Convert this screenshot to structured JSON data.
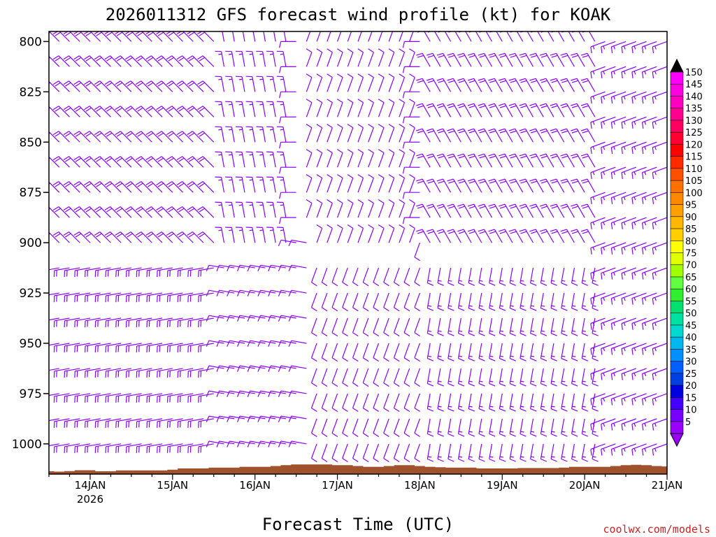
{
  "chart_data": {
    "type": "wind-barb-profile",
    "title": "2026011312 GFS forecast wind profile (kt) for KOAK",
    "xlabel": "Forecast Time (UTC)",
    "ylabel": "",
    "credit": "coolwx.com/models",
    "y_axis": {
      "unit": "hPa",
      "range": [
        1015,
        795
      ],
      "ticks": [
        800,
        825,
        850,
        875,
        900,
        925,
        950,
        975,
        1000
      ],
      "barb_levels": [
        800,
        812.5,
        825,
        837.5,
        850,
        862.5,
        875,
        887.5,
        900,
        912.5,
        925,
        937.5,
        950,
        962.5,
        975,
        987.5,
        1000
      ]
    },
    "x_axis": {
      "unit": "hours after 2026-01-13 12Z",
      "range": [
        0,
        180
      ],
      "ticks": [
        {
          "hour": 12,
          "label": "14JAN",
          "sublabel": "2026"
        },
        {
          "hour": 36,
          "label": "15JAN",
          "sublabel": ""
        },
        {
          "hour": 60,
          "label": "16JAN",
          "sublabel": ""
        },
        {
          "hour": 84,
          "label": "17JAN",
          "sublabel": ""
        },
        {
          "hour": 108,
          "label": "18JAN",
          "sublabel": ""
        },
        {
          "hour": 132,
          "label": "19JAN",
          "sublabel": ""
        },
        {
          "hour": 156,
          "label": "20JAN",
          "sublabel": ""
        },
        {
          "hour": 180,
          "label": "21JAN",
          "sublabel": ""
        }
      ],
      "barb_step_hours": 3
    },
    "colorbar": {
      "unit": "kt",
      "ticks": [
        150,
        145,
        140,
        135,
        130,
        125,
        120,
        115,
        110,
        105,
        100,
        95,
        90,
        85,
        80,
        75,
        70,
        65,
        60,
        55,
        50,
        45,
        40,
        35,
        30,
        25,
        20,
        15,
        10,
        5
      ],
      "colors": [
        "#ff00ff",
        "#ff00e0",
        "#ff00c0",
        "#ff0090",
        "#ff0060",
        "#ff0030",
        "#ff0000",
        "#ff2a00",
        "#ff5000",
        "#ff7000",
        "#ff8800",
        "#ffa000",
        "#ffb800",
        "#ffd000",
        "#ffff00",
        "#e0ff00",
        "#a0ff00",
        "#60ff40",
        "#30ee30",
        "#00e070",
        "#00e0a0",
        "#00d8d0",
        "#00b8f0",
        "#0090ff",
        "#0060ff",
        "#0040e0",
        "#0000e0",
        "#4400ff",
        "#7700ff",
        "#9900ff"
      ],
      "min_triangle_color": "#9900ff",
      "max_triangle_color": "#000000"
    },
    "terrain": {
      "color": "#a0522d",
      "surface_pressure_hpa": [
        1013.6,
        1013.8,
        1013.5,
        1013.1,
        1013.1,
        1013.6,
        1013.6,
        1013.2,
        1013.2,
        1013.2,
        1013.2,
        1013.2,
        1012.8,
        1012.2,
        1012.2,
        1012.2,
        1011.8,
        1011.8,
        1011.8,
        1011.4,
        1011.4,
        1011.4,
        1011.0,
        1010.6,
        1010.2,
        1010.2,
        1010.2,
        1010.2,
        1010.6,
        1010.6,
        1011.0,
        1011.4,
        1011.4,
        1011.0,
        1010.6,
        1010.6,
        1011.0,
        1011.4,
        1011.6,
        1011.8,
        1011.8,
        1011.8,
        1012.2,
        1012.2,
        1012.2,
        1012.2,
        1012.0,
        1012.0,
        1012.0,
        1012.0,
        1011.8,
        1011.4,
        1011.4,
        1011.4,
        1011.4,
        1011.0,
        1010.6,
        1010.4,
        1010.6,
        1011.0,
        1011.2
      ]
    },
    "barb_color_default": "#8800ff",
    "barb_color_strong": "#2233dd",
    "wind_regimes": [
      {
        "hours": [
          0,
          48
        ],
        "levels": [
          800,
          910
        ],
        "direction_deg": 315,
        "speed_kt": 22
      },
      {
        "hours": [
          0,
          48
        ],
        "levels": [
          912,
          1000
        ],
        "direction_deg": 260,
        "speed_kt": 20
      },
      {
        "hours": [
          48,
          70
        ],
        "levels": [
          800,
          900
        ],
        "direction_deg": 350,
        "speed_kt": 15
      },
      {
        "hours": [
          48,
          75
        ],
        "levels": [
          900,
          1000
        ],
        "direction_deg": 280,
        "speed_kt": 12
      },
      {
        "hours": [
          75,
          105
        ],
        "levels": [
          800,
          900
        ],
        "direction_deg": 20,
        "speed_kt": 8
      },
      {
        "hours": [
          75,
          110
        ],
        "levels": [
          900,
          1000
        ],
        "direction_deg": 200,
        "speed_kt": 12
      },
      {
        "hours": [
          110,
          160
        ],
        "levels": [
          800,
          900
        ],
        "direction_deg": 330,
        "speed_kt": 18
      },
      {
        "hours": [
          110,
          160
        ],
        "levels": [
          900,
          1000
        ],
        "direction_deg": 190,
        "speed_kt": 15
      },
      {
        "hours": [
          160,
          180
        ],
        "levels": [
          800,
          1000
        ],
        "direction_deg": 250,
        "speed_kt": 15
      }
    ]
  }
}
